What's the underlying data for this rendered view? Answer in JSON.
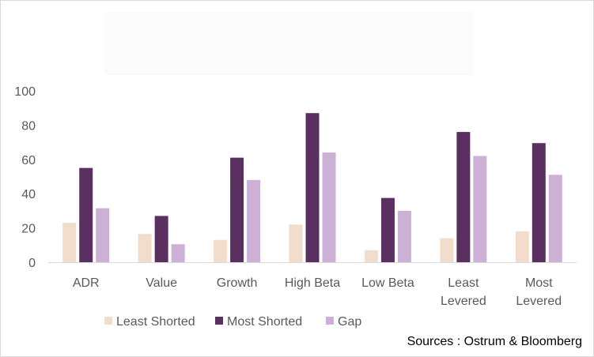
{
  "chart_data": {
    "type": "bar",
    "title": "",
    "xlabel": "",
    "ylabel": "",
    "ylim": [
      0,
      100
    ],
    "yticks": [
      0,
      20,
      40,
      60,
      80,
      100
    ],
    "categories": [
      [
        "ADR"
      ],
      [
        "Value"
      ],
      [
        "Growth"
      ],
      [
        "High Beta"
      ],
      [
        "Low Beta"
      ],
      [
        "Least",
        "Levered"
      ],
      [
        "Most",
        "Levered"
      ]
    ],
    "series": [
      {
        "name": "Least Shorted",
        "color": "#f2dccb",
        "values": [
          23,
          16.5,
          13,
          22,
          7,
          14,
          18
        ]
      },
      {
        "name": "Most Shorted",
        "color": "#59305f",
        "values": [
          55,
          27,
          61,
          87,
          37.5,
          76,
          69.5
        ]
      },
      {
        "name": "Gap",
        "color": "#ccb0d5",
        "values": [
          31.5,
          10.5,
          48,
          64,
          30,
          62,
          51
        ]
      }
    ],
    "grid": false,
    "legend_position": "bottom"
  },
  "source_note": "Sources : Ostrum & Bloomberg"
}
